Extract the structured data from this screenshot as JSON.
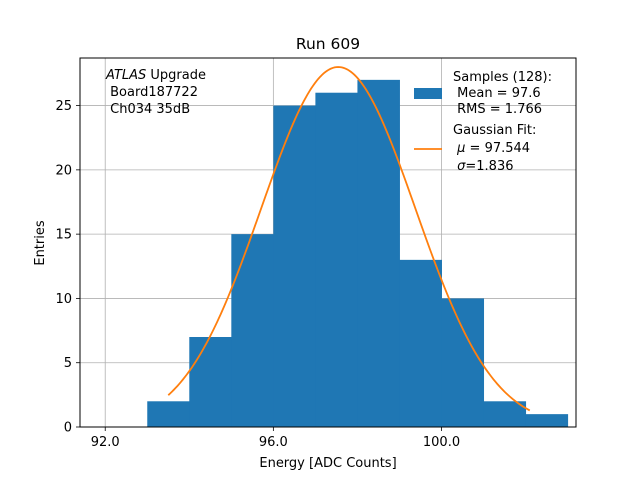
{
  "chart_data": {
    "type": "bar",
    "title": "Run 609",
    "xlabel": "Energy [ADC Counts]",
    "ylabel": "Entries",
    "xlim": [
      91.4,
      103.2
    ],
    "ylim": [
      0,
      28.7
    ],
    "xticks": [
      92.0,
      96.0,
      100.0
    ],
    "xtick_labels": [
      "92.0",
      "96.0",
      "100.0"
    ],
    "yticks": [
      0,
      5,
      10,
      15,
      20,
      25
    ],
    "ytick_labels": [
      "0",
      "5",
      "10",
      "15",
      "20",
      "25"
    ],
    "grid": true,
    "legend_position": "top-right",
    "histogram": {
      "name": "Samples (128):",
      "color": "#1f77b4",
      "bins": [
        {
          "x0": 93.0,
          "x1": 94.0,
          "count": 2
        },
        {
          "x0": 94.0,
          "x1": 95.0,
          "count": 7
        },
        {
          "x0": 95.0,
          "x1": 96.0,
          "count": 15
        },
        {
          "x0": 96.0,
          "x1": 97.0,
          "count": 25
        },
        {
          "x0": 97.0,
          "x1": 98.0,
          "count": 26
        },
        {
          "x0": 98.0,
          "x1": 99.0,
          "count": 27
        },
        {
          "x0": 99.0,
          "x1": 100.0,
          "count": 13
        },
        {
          "x0": 100.0,
          "x1": 101.0,
          "count": 10
        },
        {
          "x0": 101.0,
          "x1": 102.0,
          "count": 2
        },
        {
          "x0": 102.0,
          "x1": 103.0,
          "count": 1
        }
      ]
    },
    "fit": {
      "name": "Gaussian Fit:",
      "color": "#ff7f0e",
      "mu": 97.544,
      "sigma": 1.836,
      "amplitude": 28.0,
      "x_range": [
        93.5,
        102.1
      ]
    },
    "legend": {
      "samples_title": "Samples (128):",
      "samples_mean": " Mean = 97.6",
      "samples_rms": " RMS = 1.766",
      "fit_title": "Gaussian Fit:",
      "fit_mu_symbol": "μ",
      "fit_mu_value": " = 97.544",
      "fit_sigma_symbol": "σ",
      "fit_sigma_value": "=1.836"
    },
    "annotation": {
      "experiment": "ATLAS",
      "line1_rest": " Upgrade",
      "line2": " Board187722",
      "line3": " Ch034 35dB"
    }
  }
}
